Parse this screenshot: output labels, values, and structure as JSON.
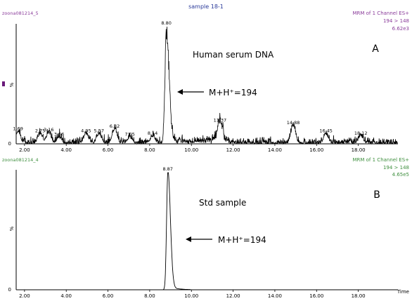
{
  "colors": {
    "trace": "#000000",
    "header_purple": "#8a3c9a",
    "header_green": "#3f8f3f",
    "title_blue": "#2a3a9a",
    "marker": "#6a1a7a"
  },
  "page_title": "sample 18-1",
  "xlabel": "Time",
  "chart_data": [
    {
      "type": "line",
      "file_label": "zoona081214_5",
      "method": "MRM of 1 Channel ES+",
      "transition": "194 > 148",
      "intensity": "6.62e3",
      "ytick": "%",
      "y_zero": "0",
      "panel_letter": "A",
      "sample_label": "Human serum DNA",
      "arrow_label": "M+H⁺=194",
      "xlim": [
        1.6,
        19.9
      ],
      "xticks": [
        "2.00",
        "4.00",
        "6.00",
        "8.00",
        "10.00",
        "12.00",
        "14.00",
        "16.00",
        "18.00"
      ],
      "peak_labels": [
        {
          "x": 1.69,
          "y": 10,
          "label": "1.69"
        },
        {
          "x": 2.75,
          "y": 8,
          "label": "2.75"
        },
        {
          "x": 3.16,
          "y": 9,
          "label": "3.16"
        },
        {
          "x": 3.66,
          "y": 5,
          "label": "3.66"
        },
        {
          "x": 4.95,
          "y": 8,
          "label": "4.95"
        },
        {
          "x": 5.57,
          "y": 8,
          "label": "5.57"
        },
        {
          "x": 6.32,
          "y": 12,
          "label": "6.32"
        },
        {
          "x": 7.05,
          "y": 5,
          "label": "7.05"
        },
        {
          "x": 8.14,
          "y": 6,
          "label": "8.14"
        },
        {
          "x": 8.8,
          "y": 100,
          "label": "8.80"
        },
        {
          "x": 11.37,
          "y": 17,
          "label": "11.37"
        },
        {
          "x": 14.88,
          "y": 15,
          "label": "14.88"
        },
        {
          "x": 16.45,
          "y": 8,
          "label": "16.45"
        },
        {
          "x": 18.12,
          "y": 6,
          "label": "18.12"
        }
      ]
    },
    {
      "type": "line",
      "file_label": "zoona081214_4",
      "method": "MRM of 1 Channel ES+",
      "transition": "194 > 148",
      "intensity": "4.65e5",
      "ytick": "%",
      "y_zero": "0",
      "panel_letter": "B",
      "sample_label": "Std sample",
      "arrow_label": "M+H⁺=194",
      "xlim": [
        1.6,
        19.9
      ],
      "xticks": [
        "2.00",
        "4.00",
        "6.00",
        "8.00",
        "10.00",
        "12.00",
        "14.00",
        "16.00",
        "18.00"
      ],
      "peak_labels": [
        {
          "x": 8.87,
          "y": 100,
          "label": "8.87"
        }
      ]
    }
  ]
}
